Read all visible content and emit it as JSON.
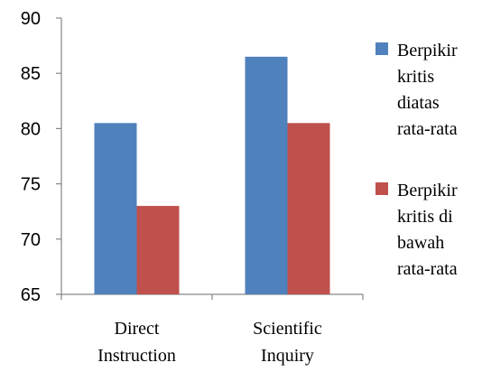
{
  "chart_data": {
    "type": "bar",
    "categories": [
      [
        "Direct",
        "Instruction"
      ],
      [
        "Scientific",
        "Inquiry"
      ]
    ],
    "series": [
      {
        "name": [
          "Berpikir",
          "kritis",
          "diatas",
          "rata-rata"
        ],
        "color": "#4F81BD",
        "values": [
          80.5,
          86.5
        ]
      },
      {
        "name": [
          "Berpikir",
          "kritis di",
          "bawah",
          "rata-rata"
        ],
        "color": "#C0504D",
        "values": [
          73,
          80.5
        ]
      }
    ],
    "ylim": [
      65,
      90
    ],
    "yticks": [
      "65",
      "70",
      "75",
      "80",
      "85",
      "90"
    ],
    "grid": false,
    "legend": "right"
  }
}
